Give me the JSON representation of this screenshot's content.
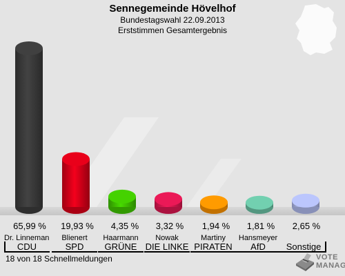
{
  "header": {
    "title": "Sennegemeinde Hövelhof",
    "subtitle": "Bundestagswahl 22.09.2013",
    "subtitle2": "Erststimmen Gesamtergebnis"
  },
  "chart_data": {
    "type": "bar",
    "categories": [
      "CDU",
      "SPD",
      "GRÜNE",
      "DIE LINKE",
      "PIRATEN",
      "AfD",
      "Sonstige"
    ],
    "candidates": [
      "Dr. Linnemann",
      "Blienert",
      "Haarmann",
      "Nowak",
      "Martiny",
      "Hansmeyer",
      ""
    ],
    "values": [
      65.99,
      19.93,
      4.35,
      3.32,
      1.94,
      1.81,
      2.65
    ],
    "value_labels": [
      "65,99 %",
      "19,93 %",
      "4,35 %",
      "3,32 %",
      "1,94 %",
      "1,81 %",
      "2,65 %"
    ],
    "colors": [
      "#3a3a3a",
      "#d40018",
      "#3fbf00",
      "#d6174f",
      "#f28d00",
      "#68bda0",
      "#aab4e6"
    ],
    "ylim": [
      0,
      70
    ],
    "grid": false,
    "legend": "none"
  },
  "footer": {
    "status": "18 von 18 Schnellmeldungen"
  },
  "logo": {
    "line1": "VOTE",
    "line2": "MANAGER"
  }
}
